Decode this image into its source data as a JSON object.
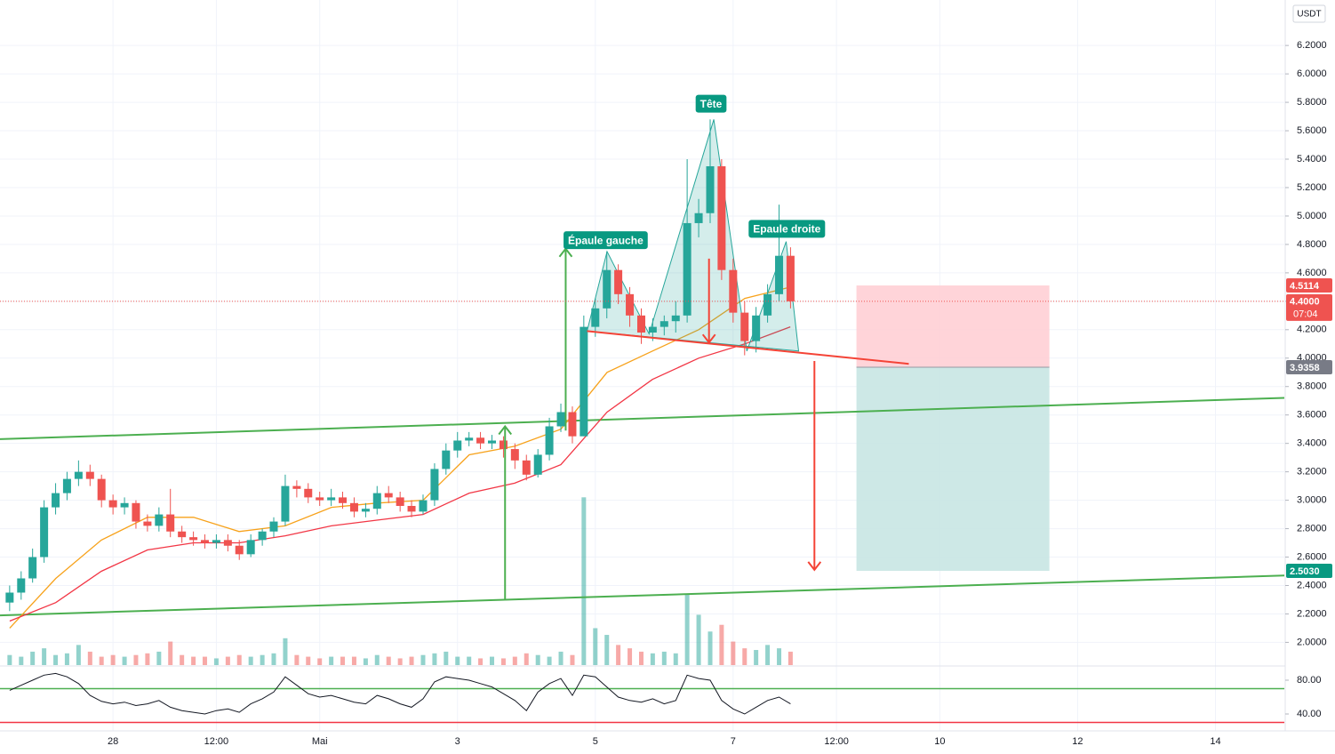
{
  "chart_data": [
    {
      "type": "candlestick",
      "currency": "USDT",
      "x": [
        26.5,
        26.667,
        26.833,
        27,
        27.167,
        27.333,
        27.5,
        27.667,
        27.833,
        28,
        28.167,
        28.333,
        28.5,
        28.667,
        28.833,
        29,
        29.167,
        29.333,
        29.5,
        29.667,
        29.833,
        30,
        30.167,
        30.333,
        30.5,
        30.667,
        30.833,
        31,
        31.167,
        31.333,
        31.5,
        31.667,
        31.833,
        32,
        32.167,
        32.333,
        32.5,
        32.667,
        32.833,
        33,
        33.167,
        33.333,
        33.5,
        33.667,
        33.833,
        34,
        34.167,
        34.333,
        34.5,
        34.667,
        34.833,
        35,
        35.167,
        35.333,
        35.5,
        35.667,
        35.833,
        36,
        36.167,
        36.333,
        36.5,
        36.667,
        36.833,
        37,
        37.167,
        37.333,
        37.5,
        37.667,
        37.833
      ],
      "open": [
        2.28,
        2.35,
        2.45,
        2.6,
        2.95,
        3.05,
        3.15,
        3.2,
        3.15,
        3.0,
        2.95,
        2.98,
        2.85,
        2.82,
        2.9,
        2.78,
        2.74,
        2.72,
        2.7,
        2.72,
        2.68,
        2.62,
        2.72,
        2.78,
        2.85,
        3.1,
        3.08,
        3.02,
        3.0,
        3.02,
        2.98,
        2.92,
        2.94,
        3.05,
        3.02,
        2.96,
        2.92,
        3.0,
        3.22,
        3.35,
        3.42,
        3.44,
        3.4,
        3.42,
        3.36,
        3.28,
        3.18,
        3.32,
        3.52,
        3.62,
        3.45,
        4.22,
        4.35,
        4.62,
        4.45,
        4.3,
        4.18,
        4.22,
        4.26,
        4.3,
        4.95,
        5.02,
        5.35,
        4.62,
        4.32,
        4.12,
        4.3,
        4.45,
        4.72
      ],
      "high": [
        2.4,
        2.5,
        2.66,
        3.0,
        3.12,
        3.2,
        3.28,
        3.25,
        3.18,
        3.04,
        3.02,
        3.0,
        2.9,
        2.95,
        3.08,
        2.82,
        2.78,
        2.76,
        2.76,
        2.76,
        2.72,
        2.76,
        2.8,
        2.88,
        3.18,
        3.14,
        3.12,
        3.06,
        3.08,
        3.06,
        3.02,
        2.98,
        3.1,
        3.1,
        3.06,
        3.0,
        3.04,
        3.26,
        3.4,
        3.48,
        3.48,
        3.48,
        3.46,
        3.45,
        3.4,
        3.32,
        3.36,
        3.58,
        3.68,
        3.66,
        4.3,
        4.42,
        4.75,
        4.66,
        4.5,
        4.35,
        4.28,
        4.3,
        4.4,
        5.4,
        5.12,
        5.68,
        5.4,
        4.7,
        4.4,
        4.36,
        4.52,
        5.08,
        4.78
      ],
      "low": [
        2.22,
        2.3,
        2.42,
        2.56,
        2.9,
        3.0,
        3.1,
        3.1,
        2.95,
        2.9,
        2.9,
        2.8,
        2.78,
        2.78,
        2.74,
        2.7,
        2.68,
        2.66,
        2.66,
        2.64,
        2.58,
        2.6,
        2.68,
        2.74,
        2.82,
        3.02,
        2.98,
        2.96,
        2.96,
        2.94,
        2.88,
        2.88,
        2.9,
        2.98,
        2.92,
        2.88,
        2.9,
        2.96,
        3.18,
        3.3,
        3.38,
        3.36,
        3.36,
        3.3,
        3.22,
        3.14,
        3.16,
        3.28,
        3.48,
        3.4,
        3.45,
        4.15,
        4.28,
        4.38,
        4.22,
        4.1,
        4.12,
        4.16,
        4.18,
        4.25,
        4.85,
        4.95,
        4.55,
        4.25,
        4.02,
        4.04,
        4.25,
        4.4,
        4.35
      ],
      "close": [
        2.35,
        2.45,
        2.6,
        2.95,
        3.05,
        3.15,
        3.2,
        3.15,
        3.0,
        2.95,
        2.98,
        2.85,
        2.82,
        2.9,
        2.78,
        2.74,
        2.72,
        2.7,
        2.72,
        2.68,
        2.62,
        2.72,
        2.78,
        2.85,
        3.1,
        3.08,
        3.02,
        3.0,
        3.02,
        2.98,
        2.92,
        2.94,
        3.05,
        3.02,
        2.96,
        2.92,
        3.0,
        3.22,
        3.35,
        3.42,
        3.44,
        3.4,
        3.42,
        3.36,
        3.28,
        3.18,
        3.32,
        3.52,
        3.62,
        3.45,
        4.22,
        4.35,
        4.62,
        4.45,
        4.3,
        4.18,
        4.22,
        4.26,
        4.3,
        4.95,
        5.02,
        5.35,
        4.62,
        4.32,
        4.12,
        4.3,
        4.45,
        4.72,
        4.4
      ],
      "up_color": "#26a69a",
      "down_color": "#ef5350",
      "volume": [
        6,
        5,
        8,
        10,
        6,
        7,
        12,
        8,
        5,
        6,
        5,
        6,
        7,
        8,
        14,
        6,
        5,
        5,
        4,
        5,
        6,
        5,
        6,
        7,
        16,
        6,
        5,
        4,
        5,
        5,
        5,
        4,
        6,
        5,
        4,
        5,
        6,
        7,
        8,
        5,
        5,
        4,
        5,
        4,
        5,
        7,
        6,
        5,
        8,
        6,
        100,
        22,
        18,
        12,
        10,
        8,
        7,
        8,
        7,
        42,
        30,
        20,
        24,
        14,
        10,
        9,
        12,
        10,
        8
      ],
      "volume_lim": [
        0,
        106
      ],
      "moving_averages": [
        {
          "color": "#f7a21b",
          "x": [
            26.5,
            27.17,
            27.83,
            28.5,
            29.17,
            29.83,
            30.5,
            31.17,
            31.83,
            32.5,
            33.17,
            33.83,
            34.5,
            35.17,
            35.83,
            36.5,
            37.17,
            37.83
          ],
          "values": [
            2.1,
            2.45,
            2.72,
            2.88,
            2.88,
            2.78,
            2.82,
            2.95,
            2.98,
            3.0,
            3.32,
            3.38,
            3.5,
            3.9,
            4.05,
            4.2,
            4.42,
            4.5
          ]
        },
        {
          "color": "#f23645",
          "x": [
            26.5,
            27.17,
            27.83,
            28.5,
            29.17,
            29.83,
            30.5,
            31.17,
            31.83,
            32.5,
            33.17,
            33.83,
            34.5,
            35.17,
            35.83,
            36.5,
            37.17,
            37.83
          ],
          "values": [
            2.15,
            2.28,
            2.5,
            2.65,
            2.7,
            2.7,
            2.75,
            2.82,
            2.86,
            2.9,
            3.05,
            3.12,
            3.25,
            3.62,
            3.85,
            4.0,
            4.1,
            4.22
          ]
        }
      ],
      "xlim": [
        26.36,
        45
      ],
      "ylim": [
        1.84,
        6.52
      ],
      "xticks": [
        28,
        {
          "value": 29.5,
          "label": "12:00"
        },
        {
          "value": 31,
          "label": "Mai"
        },
        {
          "value": 33,
          "label": "3"
        },
        {
          "value": 35,
          "label": "5"
        },
        {
          "value": 37,
          "label": "7"
        },
        {
          "value": 38.5,
          "label": "12:00"
        },
        {
          "value": 40,
          "label": "10"
        },
        {
          "value": 42,
          "label": "12"
        },
        {
          "value": 44,
          "label": "14"
        }
      ],
      "yticks": [
        {
          "value": 2.0,
          "label": "2.0000"
        },
        {
          "value": 2.2,
          "label": "2.2000"
        },
        {
          "value": 2.4,
          "label": "2.4000"
        },
        {
          "value": 2.6,
          "label": "2.6000"
        },
        {
          "value": 2.8,
          "label": "2.8000"
        },
        {
          "value": 3.0,
          "label": "3.0000"
        },
        {
          "value": 3.2,
          "label": "3.2000"
        },
        {
          "value": 3.4,
          "label": "3.4000"
        },
        {
          "value": 3.6,
          "label": "3.6000"
        },
        {
          "value": 3.8,
          "label": "3.8000"
        },
        {
          "value": 4.0,
          "label": "4.0000"
        },
        {
          "value": 4.2,
          "label": "4.2000"
        },
        {
          "value": 4.4,
          "label": "4.4000"
        },
        {
          "value": 4.6,
          "label": "4.6000"
        },
        {
          "value": 4.8,
          "label": "4.8000"
        },
        {
          "value": 5.0,
          "label": "5.0000"
        },
        {
          "value": 5.2,
          "label": "5.2000"
        },
        {
          "value": 5.4,
          "label": "5.4000"
        },
        {
          "value": 5.6,
          "label": "5.6000"
        },
        {
          "value": 5.8,
          "label": "5.8000"
        },
        {
          "value": 6.0,
          "label": "6.0000"
        },
        {
          "value": 6.2,
          "label": "6.2000"
        }
      ],
      "grid": true,
      "last_price": {
        "value": 4.4,
        "label": "4.4000"
      },
      "countdown": "07:04",
      "channel_lines": [
        {
          "color": "#4caf50",
          "x": [
            26.36,
            45
          ],
          "values": [
            3.43,
            3.72
          ]
        },
        {
          "color": "#4caf50",
          "x": [
            26.36,
            45
          ],
          "values": [
            2.19,
            2.47
          ]
        }
      ],
      "neckline": {
        "color": "#f44336",
        "x": [
          34.88,
          39.55
        ],
        "values": [
          4.19,
          3.96
        ]
      },
      "pattern": {
        "color": "#26a69a",
        "x": [
          34.88,
          35.17,
          35.78,
          36.72,
          37.2,
          37.77,
          37.95
        ],
        "values": [
          4.19,
          4.75,
          4.17,
          5.68,
          4.05,
          4.82,
          4.05
        ]
      },
      "pattern_labels": [
        {
          "text": "Épaule gauche",
          "x": 35.15,
          "y": 4.83
        },
        {
          "text": "Tête",
          "x": 36.68,
          "y": 5.79
        },
        {
          "text": "Epaule droite",
          "x": 37.78,
          "y": 4.91
        }
      ],
      "arrows": [
        {
          "color": "#4caf50",
          "x": [
            33.69,
            33.69
          ],
          "values": [
            2.3,
            3.52
          ]
        },
        {
          "color": "#4caf50",
          "x": [
            34.57,
            34.57
          ],
          "values": [
            3.49,
            4.77
          ]
        },
        {
          "color": "#f44336",
          "x": [
            36.65,
            36.65
          ],
          "values": [
            4.7,
            4.11
          ]
        },
        {
          "color": "#f44336",
          "x": [
            38.18,
            38.18
          ],
          "values": [
            3.98,
            2.51
          ]
        }
      ],
      "position": {
        "x": [
          38.79,
          41.59
        ],
        "stop": {
          "value": 4.5114,
          "label": "4.5114"
        },
        "entry": {
          "value": 3.9358,
          "label": "3.9358"
        },
        "target": {
          "value": 2.503,
          "label": "2.5030"
        },
        "stop_color": "#ffcdd2",
        "target_color": "#c8e6e3"
      }
    },
    {
      "type": "line",
      "x": [
        26.5,
        26.667,
        26.833,
        27,
        27.167,
        27.333,
        27.5,
        27.667,
        27.833,
        28,
        28.167,
        28.333,
        28.5,
        28.667,
        28.833,
        29,
        29.167,
        29.333,
        29.5,
        29.667,
        29.833,
        30,
        30.167,
        30.333,
        30.5,
        30.667,
        30.833,
        31,
        31.167,
        31.333,
        31.5,
        31.667,
        31.833,
        32,
        32.167,
        32.333,
        32.5,
        32.667,
        32.833,
        33,
        33.167,
        33.333,
        33.5,
        33.667,
        33.833,
        34,
        34.167,
        34.333,
        34.5,
        34.667,
        34.833,
        35,
        35.167,
        35.333,
        35.5,
        35.667,
        35.833,
        36,
        36.167,
        36.333,
        36.5,
        36.667,
        36.833,
        37,
        37.167,
        37.333,
        37.5,
        37.667,
        37.833
      ],
      "values": [
        68,
        74,
        80,
        86,
        88,
        84,
        76,
        62,
        55,
        52,
        54,
        50,
        52,
        56,
        48,
        44,
        42,
        40,
        44,
        46,
        42,
        52,
        58,
        66,
        84,
        74,
        64,
        60,
        62,
        58,
        54,
        52,
        62,
        58,
        52,
        48,
        58,
        78,
        84,
        82,
        80,
        76,
        72,
        64,
        56,
        44,
        66,
        76,
        82,
        62,
        86,
        84,
        72,
        60,
        56,
        54,
        58,
        52,
        56,
        86,
        82,
        80,
        56,
        46,
        40,
        48,
        56,
        60,
        52
      ],
      "color": "#131722",
      "levels": [
        {
          "value": 70,
          "color": "#4caf50"
        },
        {
          "value": 30,
          "color": "#f23645"
        }
      ],
      "ylim": [
        20,
        95.8
      ],
      "yticks": [
        {
          "value": 40,
          "label": "40.00"
        },
        {
          "value": 80,
          "label": "80.00"
        }
      ]
    }
  ]
}
